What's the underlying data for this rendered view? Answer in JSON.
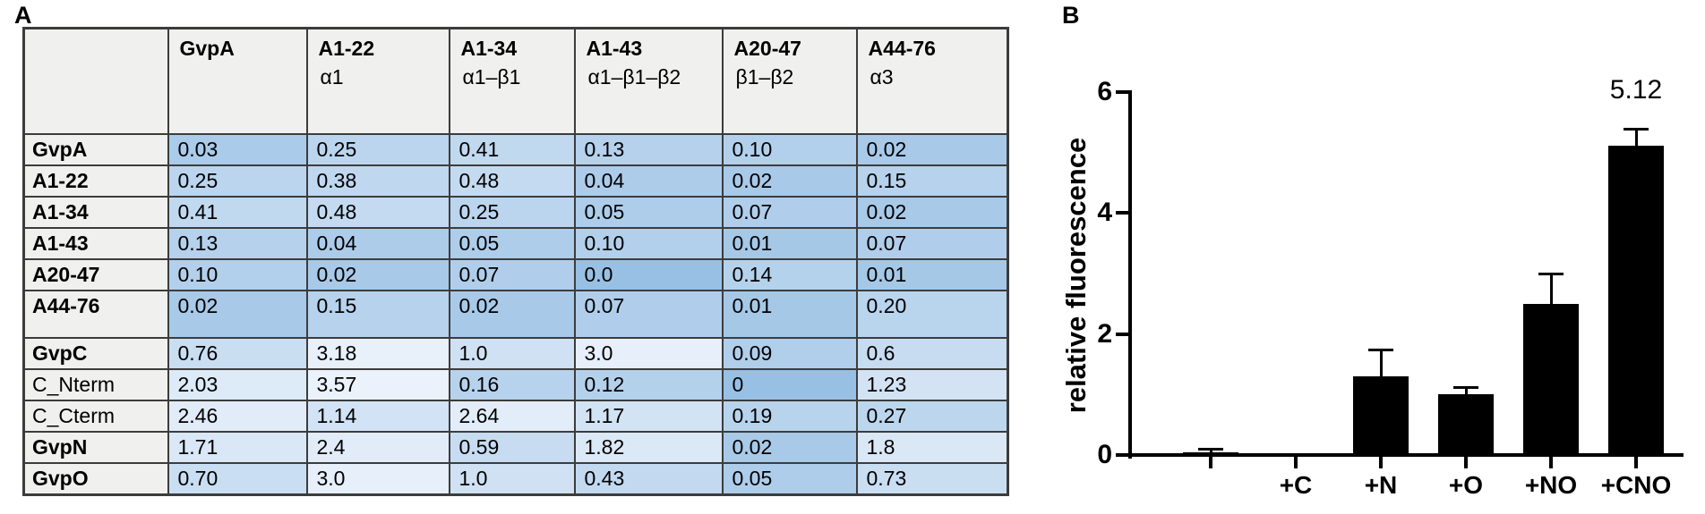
{
  "figure": {
    "panel_a_label": "A",
    "panel_b_label": "B"
  },
  "colors": {
    "heatmap_low_value": "#98C0E4",
    "heatmap_high_value": "#EBF2FB",
    "table_header_bg": "#F0F0EE",
    "table_grid_line": "#3C3C3C",
    "bar_fill": "#000000"
  },
  "chart_data": [
    {
      "type": "heatmap",
      "columns": [
        {
          "name": "GvpA",
          "structure": ""
        },
        {
          "name": "A1-22",
          "structure": "α1"
        },
        {
          "name": "A1-34",
          "structure": "α1–β1"
        },
        {
          "name": "A1-43",
          "structure": "α1–β1–β2"
        },
        {
          "name": "A20-47",
          "structure": "β1–β2"
        },
        {
          "name": "A44-76",
          "structure": "α3"
        }
      ],
      "rows": [
        {
          "label": "GvpA",
          "bold": true,
          "group_end": false,
          "values": [
            "0.03",
            "0.25",
            "0.41",
            "0.13",
            "0.10",
            "0.02"
          ]
        },
        {
          "label": "A1-22",
          "bold": true,
          "group_end": false,
          "values": [
            "0.25",
            "0.38",
            "0.48",
            "0.04",
            "0.02",
            "0.15"
          ]
        },
        {
          "label": "A1-34",
          "bold": true,
          "group_end": false,
          "values": [
            "0.41",
            "0.48",
            "0.25",
            "0.05",
            "0.07",
            "0.02"
          ]
        },
        {
          "label": "A1-43",
          "bold": true,
          "group_end": false,
          "values": [
            "0.13",
            "0.04",
            "0.05",
            "0.10",
            "0.01",
            "0.07"
          ]
        },
        {
          "label": "A20-47",
          "bold": true,
          "group_end": false,
          "values": [
            "0.10",
            "0.02",
            "0.07",
            "0.0",
            "0.14",
            "0.01"
          ]
        },
        {
          "label": "A44-76",
          "bold": true,
          "group_end": true,
          "values": [
            "0.02",
            "0.15",
            "0.02",
            "0.07",
            "0.01",
            "0.20"
          ]
        },
        {
          "label": "GvpC",
          "bold": true,
          "group_end": false,
          "values": [
            "0.76",
            "3.18",
            "1.0",
            "3.0",
            "0.09",
            "0.6"
          ]
        },
        {
          "label": "C_Nterm",
          "bold": false,
          "group_end": false,
          "values": [
            "2.03",
            "3.57",
            "0.16",
            "0.12",
            "0",
            "1.23"
          ]
        },
        {
          "label": "C_Cterm",
          "bold": false,
          "group_end": false,
          "values": [
            "2.46",
            "1.14",
            "2.64",
            "1.17",
            "0.19",
            "0.27"
          ]
        },
        {
          "label": "GvpN",
          "bold": true,
          "group_end": false,
          "values": [
            "1.71",
            "2.4",
            "0.59",
            "1.82",
            "0.02",
            "1.8"
          ]
        },
        {
          "label": "GvpO",
          "bold": true,
          "group_end": false,
          "values": [
            "0.70",
            "3.0",
            "1.0",
            "0.43",
            "0.05",
            "0.73"
          ]
        }
      ],
      "color_scale": {
        "min": 0,
        "max": 3.6
      }
    },
    {
      "type": "bar",
      "categories": [
        "",
        "+C",
        "+N",
        "+O",
        "+NO",
        "+CNO"
      ],
      "values": [
        0.05,
        0,
        1.3,
        1.0,
        2.5,
        5.12
      ],
      "errors_up": [
        0.05,
        0,
        0.45,
        0.12,
        0.5,
        0.28
      ],
      "ylabel": "relative fluorescence",
      "yticks": [
        0,
        2,
        4,
        6
      ],
      "ylim": [
        0,
        6
      ],
      "annotation": {
        "text": "5.12",
        "category": "+CNO"
      },
      "grid": false,
      "legend": "none"
    }
  ]
}
